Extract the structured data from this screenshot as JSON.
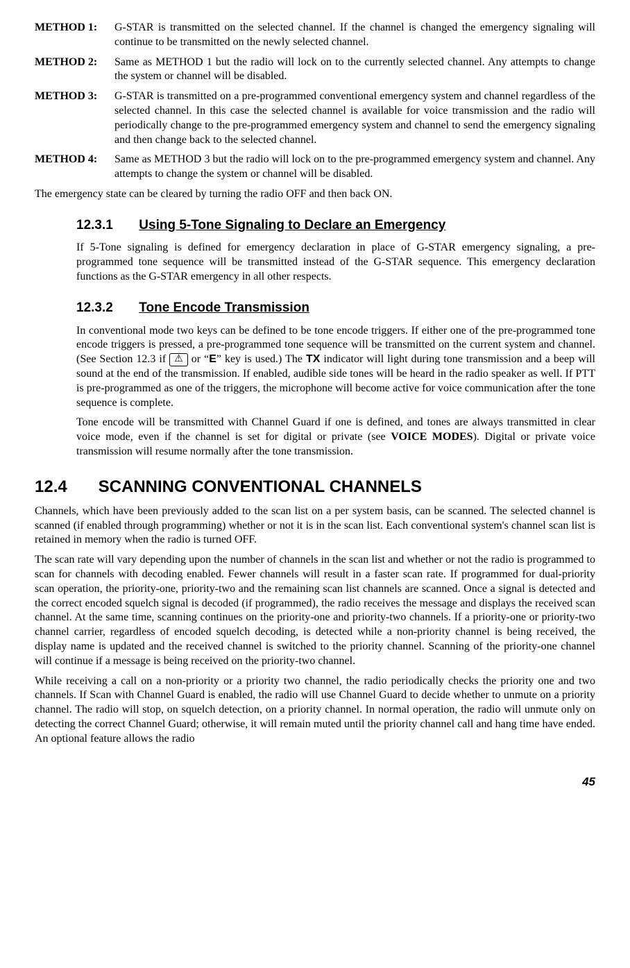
{
  "methods": [
    {
      "label": "METHOD 1:",
      "body": "G-STAR is transmitted on the selected channel. If the channel is changed the emergency signaling will continue to be transmitted on the newly selected channel."
    },
    {
      "label": "METHOD 2:",
      "body": "Same as METHOD 1 but the radio will lock on to the currently selected channel. Any attempts to change the system or channel will be disabled."
    },
    {
      "label": "METHOD 3:",
      "body": "G-STAR is transmitted on a pre-programmed conventional emergency system and channel regardless of the selected channel. In this case the selected channel is available for voice transmission and the radio will periodically change to the pre-programmed emergency system and channel to send the emergency signaling and then change back to the selected channel."
    },
    {
      "label": "METHOD 4:",
      "body": "Same as METHOD 3 but the radio will lock on to the pre-programmed emergency system and channel. Any attempts to change the system or channel will be disabled."
    }
  ],
  "clear_state": "The emergency state can be cleared by turning the radio OFF and then back ON.",
  "s12_3_1": {
    "num": "12.3.1",
    "title": "Using 5-Tone Signaling to Declare an Emergency",
    "p1": "If 5-Tone signaling is defined for emergency declaration in place of G-STAR emergency signaling, a pre-programmed tone sequence will be transmitted instead of the G-STAR sequence. This emergency declaration functions as the G-STAR emergency in all other respects."
  },
  "s12_3_2": {
    "num": "12.3.2",
    "title": "Tone Encode Transmission",
    "p1a": "In conventional mode two keys can be defined to be tone encode triggers. If either one of the pre-programmed tone encode triggers is pressed, a pre-programmed tone sequence will be transmitted on the current system and channel. (See Section 12.3 if ",
    "key_icon": "⚠",
    "p1b": " or “",
    "ekey": "E",
    "p1c": "” key is used.) The ",
    "tx": "TX",
    "p1d": " indicator will light during tone transmission and a beep will sound at the end of the transmission. If enabled, audible side tones will be heard in the radio speaker as well. If PTT is pre-programmed as one of the triggers, the microphone will become active for voice communication after the tone sequence is complete.",
    "p2a": "Tone encode will be transmitted with Channel Guard if one is defined, and tones are always transmitted in clear voice mode, even if the channel is set for digital or private (see ",
    "voice_modes": "VOICE MODES",
    "p2b": "). Digital or private voice transmission will resume normally after the tone transmission."
  },
  "s12_4": {
    "num": "12.4",
    "title": "SCANNING CONVENTIONAL CHANNELS",
    "p1": "Channels, which have been previously added to the scan list on a per system basis, can be scanned. The selected channel is scanned (if enabled through programming) whether or not it is in the scan list. Each conventional system's channel scan list is retained in memory when the radio is turned OFF.",
    "p2": "The scan rate will vary depending upon the number of channels in the scan list and whether or not the radio is programmed to scan for channels with decoding enabled. Fewer channels will result in a faster scan rate. If programmed for dual-priority scan operation, the priority-one, priority-two and the remaining scan list channels are scanned. Once a signal is detected and the correct encoded squelch signal is decoded (if programmed), the radio receives the message and displays the received scan channel. At the same time, scanning continues on the priority-one and priority-two channels. If a priority-one or priority-two channel carrier, regardless of encoded squelch decoding, is detected while a non-priority channel is being received, the display name is updated and the received channel is switched to the priority channel. Scanning of the priority-one channel will continue if a message is being received on the priority-two channel.",
    "p3": "While receiving a call on a non-priority or a priority two channel, the radio periodically checks the priority one and two channels. If Scan with Channel Guard is enabled, the radio will use Channel Guard to decide whether to unmute on a priority channel. The radio will stop, on squelch detection, on a priority channel. In normal operation, the radio will unmute only on detecting the correct Channel Guard; otherwise, it will remain muted until the priority channel call and hang time have ended. An optional feature allows the radio"
  },
  "page_num": "45"
}
